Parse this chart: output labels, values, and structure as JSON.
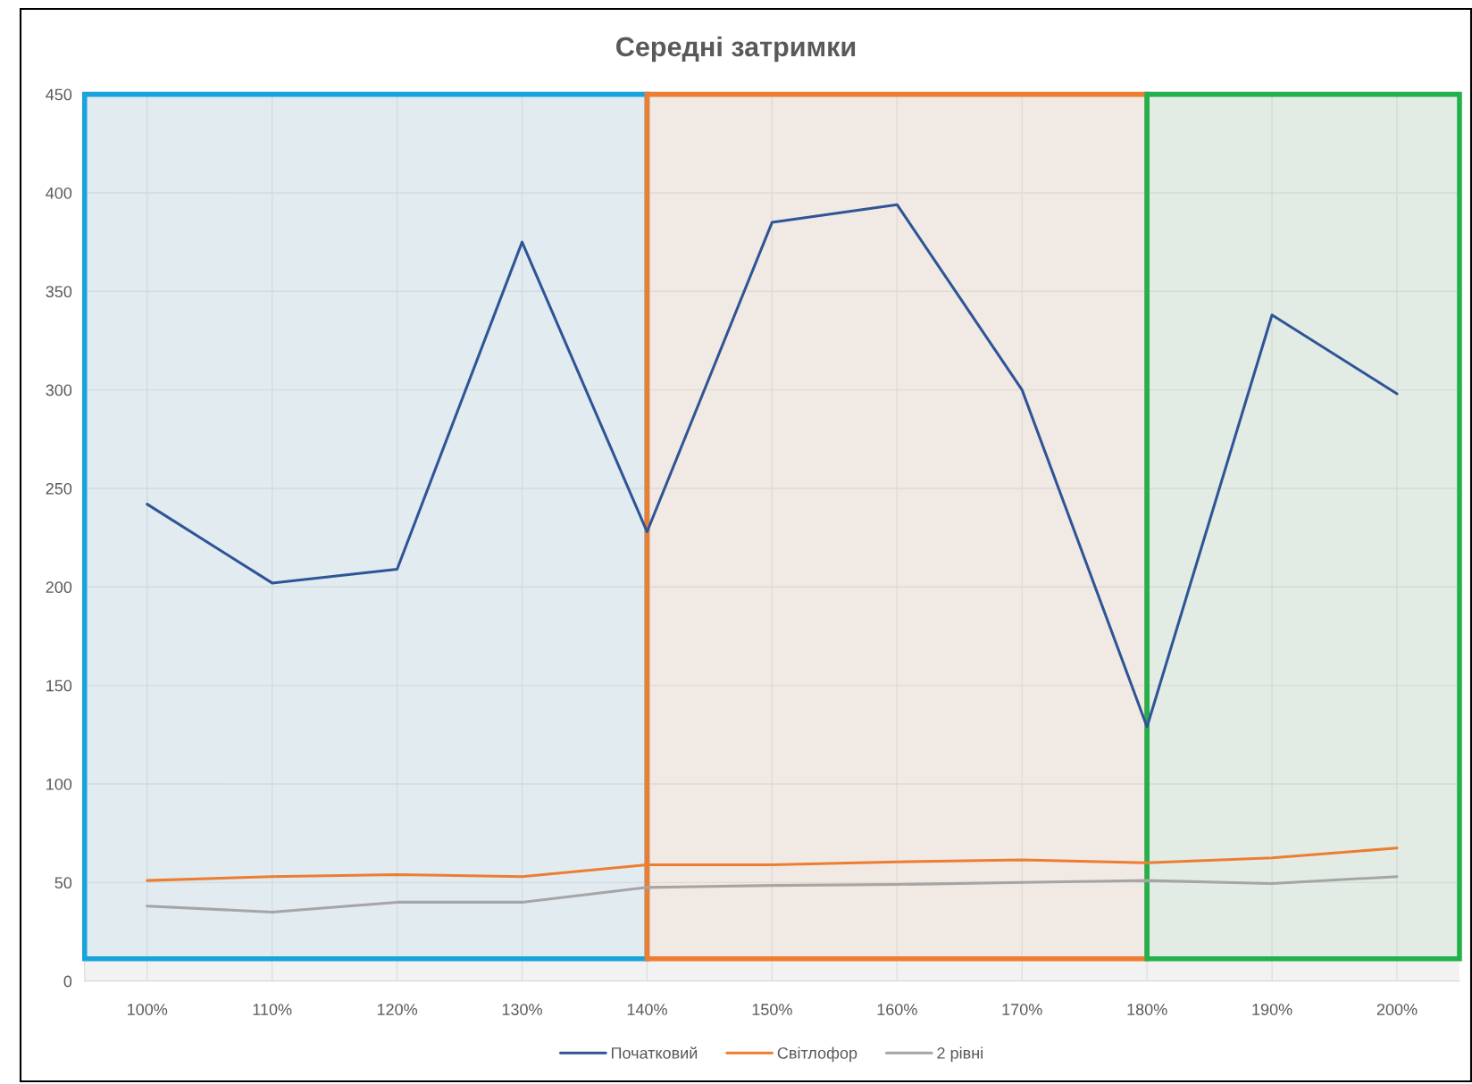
{
  "chart_data": {
    "type": "line",
    "title": "Середні затримки",
    "x": [
      100,
      110,
      120,
      130,
      140,
      150,
      160,
      170,
      180,
      190,
      200
    ],
    "series": [
      {
        "name": "Початковий",
        "color": "#2f5597",
        "values": [
          242,
          202,
          209,
          375,
          228,
          385,
          394,
          300,
          129,
          338,
          298
        ]
      },
      {
        "name": "Світлофор",
        "color": "#ed7d31",
        "values": [
          51,
          53,
          54,
          53,
          59,
          59,
          60.5,
          61.5,
          60,
          62.5,
          67.5
        ]
      },
      {
        "name": "2 рівні",
        "color": "#a5a5a5",
        "values": [
          38,
          35,
          40,
          40,
          47.5,
          48.5,
          49,
          50,
          51,
          49.5,
          53
        ]
      }
    ],
    "xlim": [
      95,
      205
    ],
    "xticks": [
      {
        "value": 100,
        "label": "100%"
      },
      {
        "value": 110,
        "label": "110%"
      },
      {
        "value": 120,
        "label": "120%"
      },
      {
        "value": 130,
        "label": "130%"
      },
      {
        "value": 140,
        "label": "140%"
      },
      {
        "value": 150,
        "label": "150%"
      },
      {
        "value": 160,
        "label": "160%"
      },
      {
        "value": 170,
        "label": "170%"
      },
      {
        "value": 180,
        "label": "180%"
      },
      {
        "value": 190,
        "label": "190%"
      },
      {
        "value": 200,
        "label": "200%"
      }
    ],
    "ylim": [
      0,
      450
    ],
    "yticks": [
      0,
      50,
      100,
      150,
      200,
      250,
      300,
      350,
      400,
      450
    ],
    "bands": [
      {
        "axis": "x",
        "from": 95,
        "to": 140,
        "color": "#19a2dc"
      },
      {
        "axis": "x",
        "from": 140,
        "to": 180,
        "color": "#ed7d31"
      },
      {
        "axis": "x",
        "from": 180,
        "to": 205,
        "color": "#22b14c"
      }
    ],
    "grid": true,
    "legend": "bottom",
    "marker": "none",
    "line_style": "solid"
  }
}
